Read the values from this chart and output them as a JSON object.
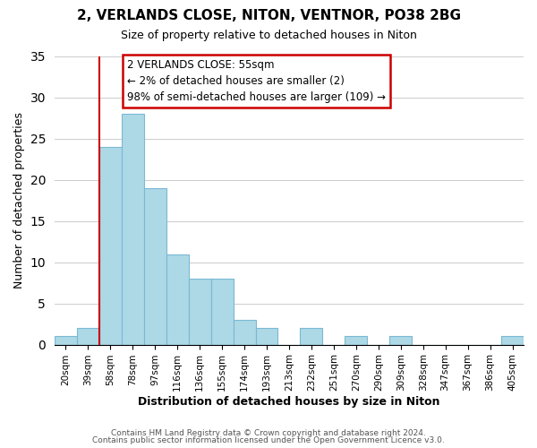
{
  "title": "2, VERLANDS CLOSE, NITON, VENTNOR, PO38 2BG",
  "subtitle": "Size of property relative to detached houses in Niton",
  "xlabel": "Distribution of detached houses by size in Niton",
  "ylabel": "Number of detached properties",
  "bin_labels": [
    "20sqm",
    "39sqm",
    "58sqm",
    "78sqm",
    "97sqm",
    "116sqm",
    "136sqm",
    "155sqm",
    "174sqm",
    "193sqm",
    "213sqm",
    "232sqm",
    "251sqm",
    "270sqm",
    "290sqm",
    "309sqm",
    "328sqm",
    "347sqm",
    "367sqm",
    "386sqm",
    "405sqm"
  ],
  "bar_heights": [
    1,
    2,
    24,
    28,
    19,
    11,
    8,
    8,
    3,
    2,
    0,
    2,
    0,
    1,
    0,
    1,
    0,
    0,
    0,
    0,
    1
  ],
  "bar_color": "#add8e6",
  "bar_edge_color": "#7bb8d4",
  "ylim": [
    0,
    35
  ],
  "yticks": [
    0,
    5,
    10,
    15,
    20,
    25,
    30,
    35
  ],
  "marker_index": 2,
  "marker_color": "#cc0000",
  "annotation_title": "2 VERLANDS CLOSE: 55sqm",
  "annotation_line1": "← 2% of detached houses are smaller (2)",
  "annotation_line2": "98% of semi-detached houses are larger (109) →",
  "footer_line1": "Contains HM Land Registry data © Crown copyright and database right 2024.",
  "footer_line2": "Contains public sector information licensed under the Open Government Licence v3.0.",
  "background_color": "#ffffff",
  "grid_color": "#cccccc"
}
